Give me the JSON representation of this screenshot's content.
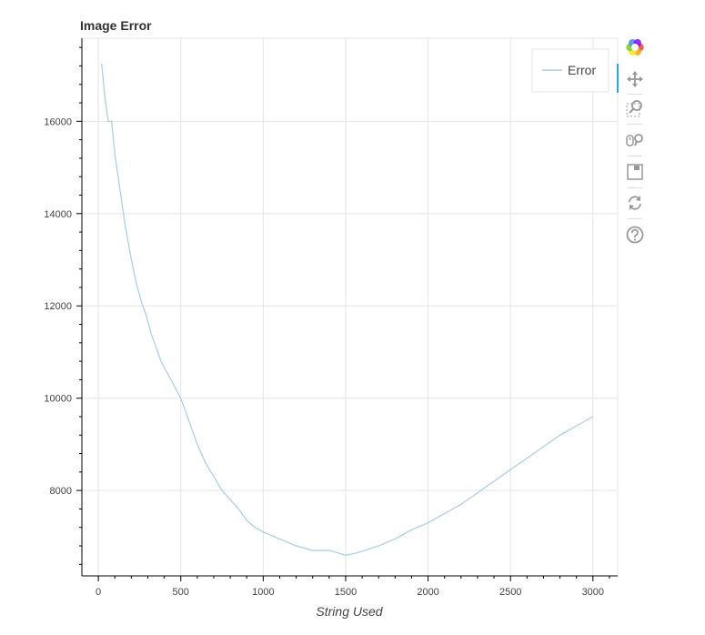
{
  "chart_data": {
    "type": "line",
    "title": "Image Error",
    "xlabel": "String Used",
    "ylabel": "",
    "xlim": [
      -100,
      3150
    ],
    "ylim": [
      6150,
      17800
    ],
    "x_ticks": [
      0,
      500,
      1000,
      1500,
      2000,
      2500,
      3000
    ],
    "y_ticks": [
      8000,
      10000,
      12000,
      14000,
      16000
    ],
    "grid": true,
    "legend_position": "top-right",
    "series": [
      {
        "name": "Error",
        "color": "#a6cee3",
        "x": [
          20,
          40,
          60,
          80,
          100,
          120,
          140,
          160,
          180,
          200,
          230,
          260,
          290,
          320,
          350,
          380,
          410,
          440,
          470,
          500,
          530,
          560,
          600,
          650,
          700,
          750,
          800,
          850,
          900,
          950,
          1000,
          1100,
          1200,
          1300,
          1400,
          1450,
          1500,
          1550,
          1600,
          1700,
          1800,
          1900,
          2000,
          2100,
          2200,
          2300,
          2400,
          2500,
          2600,
          2700,
          2800,
          2900,
          3000
        ],
        "values": [
          17250,
          16500,
          16000,
          16000,
          15300,
          14800,
          14300,
          13800,
          13400,
          13000,
          12500,
          12100,
          11800,
          11400,
          11100,
          10800,
          10600,
          10400,
          10200,
          10000,
          9700,
          9400,
          9000,
          8600,
          8300,
          8000,
          7800,
          7600,
          7350,
          7200,
          7100,
          6950,
          6800,
          6700,
          6700,
          6650,
          6600,
          6630,
          6680,
          6800,
          6950,
          7150,
          7300,
          7500,
          7700,
          7950,
          8200,
          8450,
          8700,
          8950,
          9200,
          9400,
          9600
        ]
      }
    ]
  },
  "toolbar": {
    "logo_colors": [
      "#e94b3c",
      "#f5a623",
      "#f8e71c",
      "#7ed321",
      "#4a90e2",
      "#9013fe"
    ],
    "tools": [
      "pan-icon",
      "box-zoom-icon",
      "wheel-zoom-icon",
      "save-icon",
      "reset-icon",
      "help-icon"
    ],
    "active_color": "#26aae1"
  }
}
